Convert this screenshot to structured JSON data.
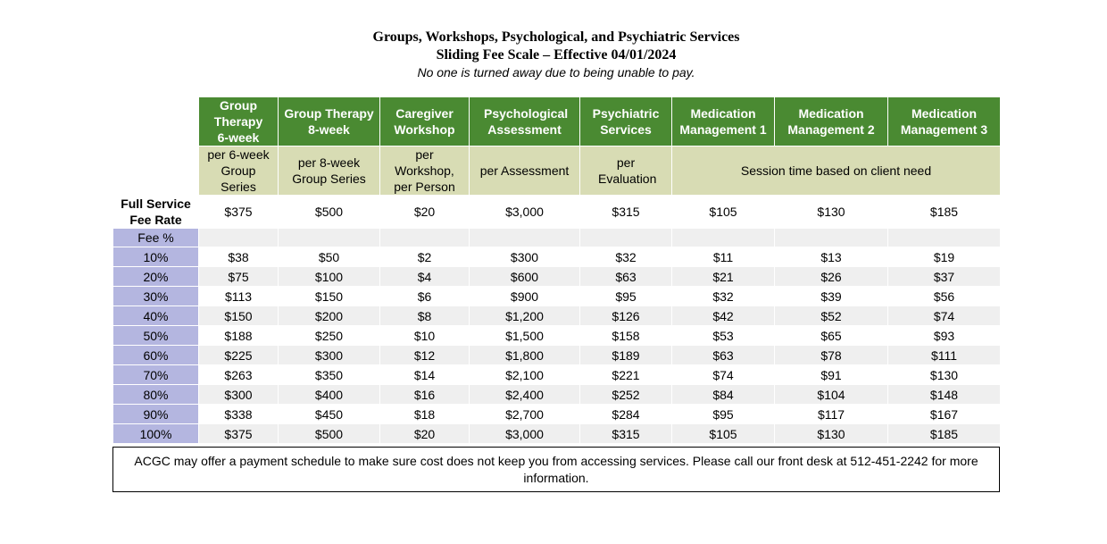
{
  "header": {
    "title": "Groups, Workshops, Psychological, and Psychiatric Services",
    "subtitle": "Sliding Fee Scale – Effective 04/01/2024",
    "tagline": "No one is turned away due to being unable to pay."
  },
  "columns": [
    {
      "name": "Group Therapy 6-week",
      "unit": "per 6-week Group Series",
      "full_rate": "$375"
    },
    {
      "name": "Group Therapy 8-week",
      "unit": "per 8-week Group Series",
      "full_rate": "$500"
    },
    {
      "name": "Caregiver Workshop",
      "unit": "per Workshop, per Person",
      "full_rate": "$20"
    },
    {
      "name": "Psychological Assessment",
      "unit": "per Assessment",
      "full_rate": "$3,000"
    },
    {
      "name": "Psychiatric Services",
      "unit": "per Evaluation",
      "full_rate": "$315"
    },
    {
      "name": "Medication Management 1",
      "full_rate": "$105"
    },
    {
      "name": "Medication Management 2",
      "full_rate": "$130"
    },
    {
      "name": "Medication Management 3",
      "full_rate": "$185"
    }
  ],
  "medication_unit": "Session time based on client need",
  "full_rate_label": "Full Service Fee Rate",
  "fee_header": "Fee %",
  "rows": [
    {
      "pct": "10%",
      "v": [
        "$38",
        "$50",
        "$2",
        "$300",
        "$32",
        "$11",
        "$13",
        "$19"
      ]
    },
    {
      "pct": "20%",
      "v": [
        "$75",
        "$100",
        "$4",
        "$600",
        "$63",
        "$21",
        "$26",
        "$37"
      ]
    },
    {
      "pct": "30%",
      "v": [
        "$113",
        "$150",
        "$6",
        "$900",
        "$95",
        "$32",
        "$39",
        "$56"
      ]
    },
    {
      "pct": "40%",
      "v": [
        "$150",
        "$200",
        "$8",
        "$1,200",
        "$126",
        "$42",
        "$52",
        "$74"
      ]
    },
    {
      "pct": "50%",
      "v": [
        "$188",
        "$250",
        "$10",
        "$1,500",
        "$158",
        "$53",
        "$65",
        "$93"
      ]
    },
    {
      "pct": "60%",
      "v": [
        "$225",
        "$300",
        "$12",
        "$1,800",
        "$189",
        "$63",
        "$78",
        "$111"
      ]
    },
    {
      "pct": "70%",
      "v": [
        "$263",
        "$350",
        "$14",
        "$2,100",
        "$221",
        "$74",
        "$91",
        "$130"
      ]
    },
    {
      "pct": "80%",
      "v": [
        "$300",
        "$400",
        "$16",
        "$2,400",
        "$252",
        "$84",
        "$104",
        "$148"
      ]
    },
    {
      "pct": "90%",
      "v": [
        "$338",
        "$450",
        "$18",
        "$2,700",
        "$284",
        "$95",
        "$117",
        "$167"
      ]
    },
    {
      "pct": "100%",
      "v": [
        "$375",
        "$500",
        "$20",
        "$3,000",
        "$315",
        "$105",
        "$130",
        "$185"
      ]
    }
  ],
  "footer_note": "ACGC may offer a payment schedule to make sure cost does not keep you from accessing services. Please call our front desk at 512-451-2242 for more information.",
  "colors": {
    "header_green": "#4a8a32",
    "unit_tan": "#d8dcb4",
    "pct_lavender": "#b4b6e0",
    "row_gray": "#efefef"
  }
}
